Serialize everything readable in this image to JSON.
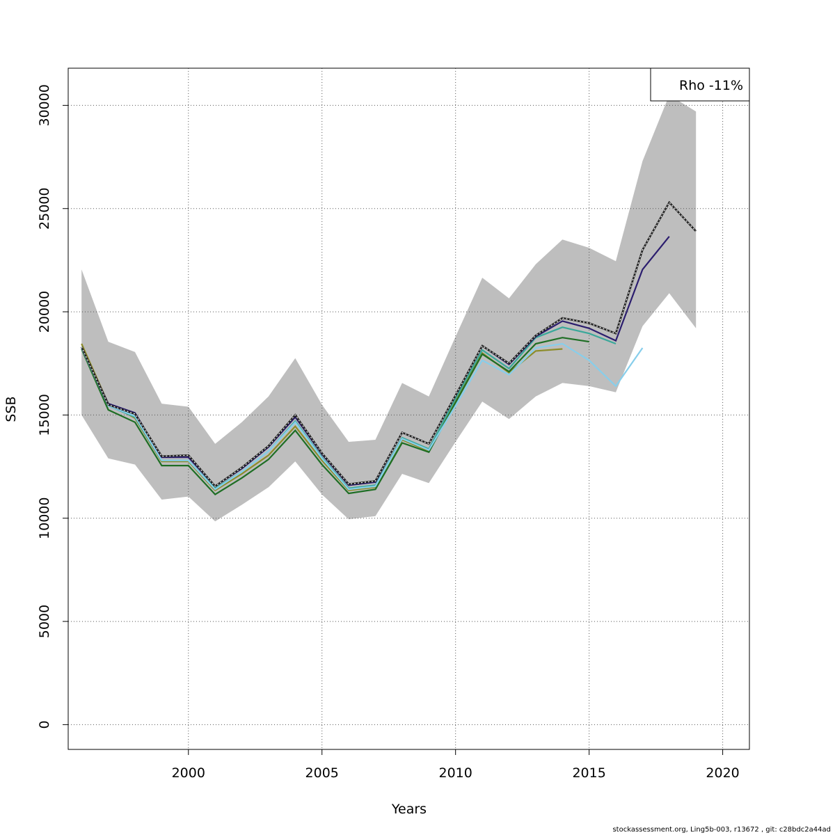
{
  "chart_data": {
    "type": "line",
    "xlabel": "Years",
    "ylabel": "SSB",
    "xlim": [
      1995.5,
      2021
    ],
    "ylim": [
      -1200,
      31800
    ],
    "x_ticks": [
      2000,
      2005,
      2010,
      2015,
      2020
    ],
    "y_ticks": [
      0,
      5000,
      10000,
      15000,
      20000,
      25000,
      30000
    ],
    "grid": true,
    "legend": {
      "text": "Rho -11%",
      "placement": "top-right"
    },
    "confidence_band": {
      "x": [
        1996,
        1997,
        1998,
        1999,
        2000,
        2001,
        2002,
        2003,
        2004,
        2005,
        2006,
        2007,
        2008,
        2009,
        2010,
        2011,
        2012,
        2013,
        2014,
        2015,
        2016,
        2017,
        2018,
        2019
      ],
      "lower": [
        15000,
        12900,
        12600,
        10900,
        11050,
        9850,
        10650,
        11500,
        12750,
        11150,
        9950,
        10100,
        12150,
        11700,
        13700,
        15650,
        14800,
        15900,
        16550,
        16400,
        16100,
        19300,
        20900,
        19200
      ],
      "upper": [
        22050,
        18550,
        18050,
        15550,
        15400,
        13600,
        14650,
        15900,
        17750,
        15500,
        13700,
        13800,
        16550,
        15900,
        18800,
        21650,
        20650,
        22300,
        23500,
        23100,
        22450,
        27300,
        30500,
        29700
      ],
      "color": "#bebebe"
    },
    "series": [
      {
        "color": "#222222",
        "dashed": true,
        "x": [
          1996,
          1997,
          1998,
          1999,
          2000,
          2001,
          2002,
          2003,
          2004,
          2005,
          2006,
          2007,
          2008,
          2009,
          2010,
          2011,
          2012,
          2013,
          2014,
          2015,
          2016,
          2017,
          2018,
          2019
        ],
        "y": [
          18300,
          15500,
          15050,
          13000,
          13050,
          11550,
          12450,
          13500,
          15000,
          13150,
          11650,
          11800,
          14150,
          13600,
          15950,
          18350,
          17500,
          18850,
          19700,
          19450,
          18950,
          23000,
          25300,
          23900
        ]
      },
      {
        "color": "#2b1d6e",
        "x": [
          1996,
          1997,
          1998,
          1999,
          2000,
          2001,
          2002,
          2003,
          2004,
          2005,
          2006,
          2007,
          2008,
          2009,
          2010,
          2011,
          2012,
          2013,
          2014,
          2015,
          2016,
          2017,
          2018
        ],
        "y": [
          18300,
          15550,
          15100,
          12950,
          12950,
          11550,
          12400,
          13450,
          14900,
          13100,
          11600,
          11750,
          14150,
          13600,
          15950,
          18350,
          17450,
          18800,
          19550,
          19200,
          18600,
          22050,
          23650
        ]
      },
      {
        "color": "#87ceeb",
        "x": [
          1996,
          1997,
          1998,
          1999,
          2000,
          2001,
          2002,
          2003,
          2004,
          2005,
          2006,
          2007,
          2008,
          2009,
          2010,
          2011,
          2012,
          2013,
          2014,
          2015,
          2016,
          2017
        ],
        "y": [
          18250,
          15450,
          14950,
          12800,
          12800,
          11400,
          12250,
          13250,
          14650,
          12900,
          11400,
          11550,
          13850,
          13300,
          15450,
          17650,
          16950,
          18250,
          18450,
          17650,
          16400,
          18250
        ]
      },
      {
        "color": "#3aa89a",
        "x": [
          1996,
          1997,
          1998,
          1999,
          2000,
          2001,
          2002,
          2003,
          2004,
          2005,
          2006,
          2007,
          2008,
          2009,
          2010,
          2011,
          2012,
          2013,
          2014,
          2015,
          2016
        ],
        "y": [
          18300,
          15450,
          14900,
          12800,
          12800,
          11450,
          12250,
          13250,
          14700,
          12950,
          11450,
          11600,
          13900,
          13350,
          15800,
          18150,
          17250,
          18750,
          19250,
          18950,
          18450
        ]
      },
      {
        "color": "#1e6e24",
        "x": [
          1996,
          1997,
          1998,
          1999,
          2000,
          2001,
          2002,
          2003,
          2004,
          2005,
          2006,
          2007,
          2008,
          2009,
          2010,
          2011,
          2012,
          2013,
          2014,
          2015
        ],
        "y": [
          18200,
          15250,
          14650,
          12550,
          12550,
          11150,
          11950,
          12850,
          14250,
          12600,
          11200,
          11400,
          13650,
          13200,
          15600,
          17950,
          17100,
          18450,
          18750,
          18550
        ]
      },
      {
        "color": "#8c8c2a",
        "x": [
          1996,
          1997,
          1998,
          1999,
          2000,
          2001,
          2002,
          2003,
          2004,
          2005,
          2006,
          2007,
          2008,
          2009,
          2010,
          2011,
          2012,
          2013,
          2014
        ],
        "y": [
          18450,
          15550,
          14850,
          12750,
          12750,
          11350,
          12150,
          13050,
          14450,
          12800,
          11350,
          11500,
          13800,
          13250,
          15700,
          18000,
          17050,
          18100,
          18200
        ]
      }
    ]
  },
  "footer": "stockassessment.org, Ling5b-003, r13672 , git: c28bdc2a44ad"
}
